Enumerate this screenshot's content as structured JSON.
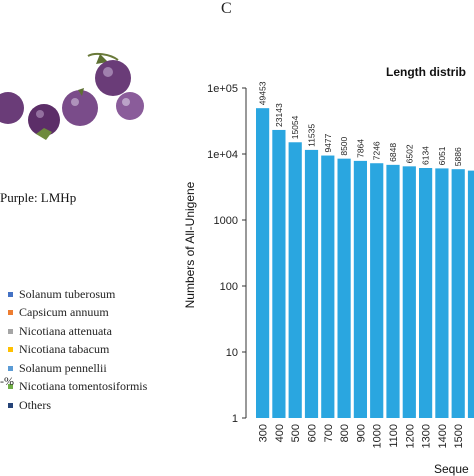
{
  "panel_letter": "C",
  "photo_caption": "Purple: LMHp",
  "legend": {
    "items": [
      {
        "label": "Solanum tuberosum",
        "color": "#4472c4"
      },
      {
        "label": "Capsicum annuum",
        "color": "#ed7d31"
      },
      {
        "label": "Nicotiana attenuata",
        "color": "#a5a5a5"
      },
      {
        "label": "Nicotiana tabacum",
        "color": "#ffc000"
      },
      {
        "label": "Solanum pennellii",
        "color": "#5b9bd5"
      },
      {
        "label": "Nicotiana tomentosiformis",
        "color": "#70ad47"
      },
      {
        "label": "Others",
        "color": "#264478"
      }
    ],
    "fragment": "-%"
  },
  "chart_data": {
    "type": "bar",
    "title": "Length distrib",
    "xlabel": "Seque",
    "ylabel": "Numbers of All-Unigene",
    "yscale": "log",
    "ylim": [
      1,
      100000
    ],
    "yticks": [
      "1e+05",
      "1e+04",
      "1000",
      "100",
      "10",
      "1"
    ],
    "bar_color": "#2aa6e0",
    "categories": [
      "300",
      "400",
      "500",
      "600",
      "700",
      "800",
      "900",
      "1000",
      "1100",
      "1200",
      "1300",
      "1400",
      "1500",
      ""
    ],
    "values": [
      49453,
      23143,
      15054,
      11535,
      9477,
      8500,
      7864,
      7246,
      6848,
      6502,
      6134,
      6051,
      5886,
      5600
    ],
    "data_labels": [
      "49453",
      "23143",
      "15054",
      "11535",
      "9477",
      "8500",
      "7864",
      "7246",
      "6848",
      "6502",
      "6134",
      "6051",
      "5886",
      ""
    ]
  }
}
